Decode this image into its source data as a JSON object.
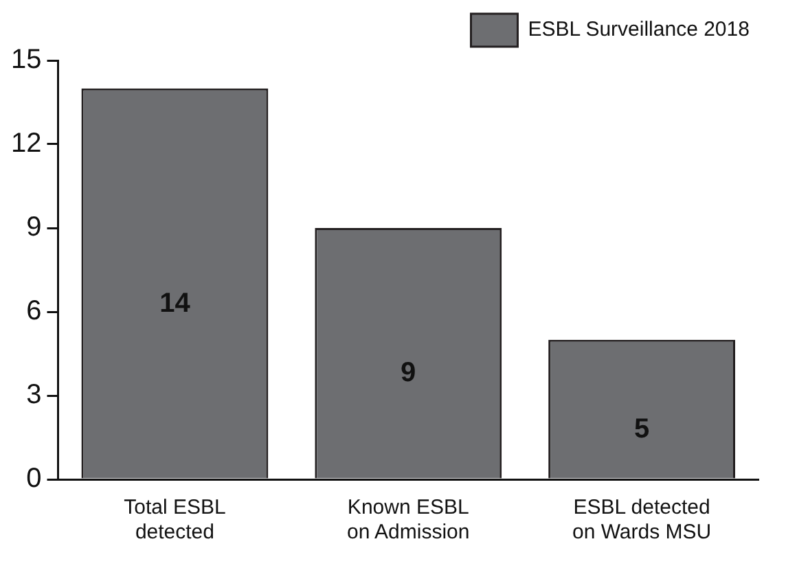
{
  "chart_data": {
    "type": "bar",
    "categories": [
      "Total ESBL\ndetected",
      "Known ESBL\non Admission",
      "ESBL detected\non Wards MSU"
    ],
    "series": [
      {
        "name": "ESBL Surveillance 2018",
        "color": "#6d6e71",
        "values": [
          14,
          9,
          5
        ]
      }
    ],
    "ylim": [
      0,
      15
    ],
    "yticks": [
      0,
      3,
      6,
      9,
      12,
      15
    ],
    "grid": false,
    "legend": "top right",
    "data_labels": true
  }
}
